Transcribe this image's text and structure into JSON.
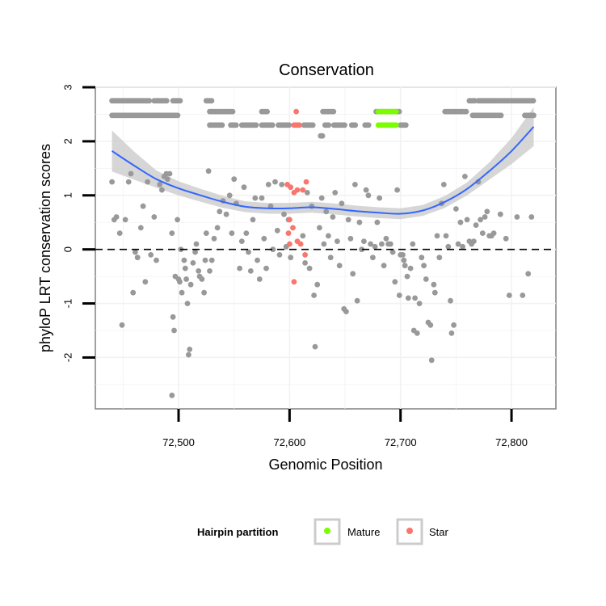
{
  "chart_data": {
    "type": "scatter",
    "title": "Conservation",
    "xlabel": "Genomic Position",
    "ylabel": "phyloP LRT conservation scores",
    "xlim": [
      72425,
      72840
    ],
    "ylim": [
      -2.95,
      3.0
    ],
    "x_ticks": [
      72500,
      72600,
      72700,
      72800
    ],
    "x_tick_labels": [
      "72,500",
      "72,600",
      "72,700",
      "72,800"
    ],
    "y_ticks": [
      -2,
      -1,
      0,
      1,
      2,
      3
    ],
    "y_tick_labels": [
      "-2",
      "-1",
      "0",
      "1",
      "2",
      "3"
    ],
    "grid": true,
    "reference_line": {
      "y": 0,
      "style": "dashed"
    },
    "legend": {
      "title": "Hairpin partition",
      "position": "bottom",
      "entries": [
        {
          "label": "Mature",
          "color": "#7CFC00"
        },
        {
          "label": "Star",
          "color": "#F8766D"
        }
      ]
    },
    "colors": {
      "other": "#999999",
      "Mature": "#7CFC00",
      "Star": "#F8766D",
      "smooth": "#3366FF",
      "band": "#cccccc"
    },
    "bands": [
      {
        "y": 2.75,
        "ranges": [
          [
            72440,
            72475
          ],
          [
            72478,
            72490
          ],
          [
            72495,
            72502
          ],
          [
            72525,
            72530
          ],
          [
            72762,
            72768
          ],
          [
            72770,
            72820
          ]
        ]
      },
      {
        "y": 2.55,
        "ranges": [
          [
            72528,
            72550
          ],
          [
            72575,
            72580
          ],
          [
            72630,
            72640
          ],
          [
            72678,
            72700
          ],
          [
            72740,
            72760
          ]
        ]
      },
      {
        "y": 2.48,
        "ranges": [
          [
            72440,
            72500
          ],
          [
            72765,
            72792
          ],
          [
            72812,
            72820
          ]
        ]
      },
      {
        "y": 2.3,
        "ranges": [
          [
            72528,
            72540
          ],
          [
            72547,
            72552
          ],
          [
            72557,
            72570
          ],
          [
            72575,
            72585
          ],
          [
            72590,
            72600
          ],
          [
            72613,
            72622
          ],
          [
            72632,
            72636
          ],
          [
            72640,
            72650
          ],
          [
            72656,
            72660
          ],
          [
            72668,
            72672
          ],
          [
            72700,
            72705
          ]
        ]
      },
      {
        "y": 2.1,
        "ranges": [
          [
            72628,
            72630
          ]
        ]
      }
    ],
    "bands_mature": [
      {
        "y": 2.55,
        "ranges": [
          [
            72680,
            72697
          ]
        ]
      },
      {
        "y": 2.3,
        "ranges": [
          [
            72680,
            72697
          ]
        ]
      }
    ],
    "bands_star": [
      {
        "y": 2.55,
        "ranges": [
          [
            72606,
            72606
          ]
        ]
      },
      {
        "y": 2.3,
        "ranges": [
          [
            72604,
            72610
          ]
        ]
      }
    ],
    "points": [
      [
        72440,
        1.25
      ],
      [
        72442,
        0.55
      ],
      [
        72444,
        0.6
      ],
      [
        72447,
        0.3
      ],
      [
        72449,
        -1.4
      ],
      [
        72452,
        0.55
      ],
      [
        72455,
        1.25
      ],
      [
        72457,
        1.4
      ],
      [
        72459,
        -0.8
      ],
      [
        72461,
        -0.05
      ],
      [
        72463,
        -0.15
      ],
      [
        72466,
        0.4
      ],
      [
        72468,
        0.8
      ],
      [
        72470,
        -0.6
      ],
      [
        72472,
        1.25
      ],
      [
        72475,
        -0.1
      ],
      [
        72478,
        0.6
      ],
      [
        72480,
        -0.2
      ],
      [
        72483,
        1.2
      ],
      [
        72485,
        1.1
      ],
      [
        72487,
        1.35
      ],
      [
        72489,
        1.4
      ],
      [
        72490,
        1.3
      ],
      [
        72492,
        1.4
      ],
      [
        72494,
        0.3
      ],
      [
        72495,
        -1.25
      ],
      [
        72496,
        -1.5
      ],
      [
        72494,
        -2.7
      ],
      [
        72497,
        -0.5
      ],
      [
        72499,
        0.55
      ],
      [
        72500,
        -0.55
      ],
      [
        72501,
        -0.6
      ],
      [
        72502,
        0.0
      ],
      [
        72503,
        -0.8
      ],
      [
        72505,
        -0.2
      ],
      [
        72506,
        -0.35
      ],
      [
        72507,
        -0.55
      ],
      [
        72508,
        -1.0
      ],
      [
        72509,
        -1.95
      ],
      [
        72510,
        -1.85
      ],
      [
        72511,
        -0.65
      ],
      [
        72513,
        -0.25
      ],
      [
        72515,
        -0.05
      ],
      [
        72516,
        0.1
      ],
      [
        72518,
        -0.4
      ],
      [
        72519,
        -0.5
      ],
      [
        72521,
        -0.55
      ],
      [
        72523,
        -0.8
      ],
      [
        72524,
        -0.2
      ],
      [
        72525,
        0.3
      ],
      [
        72527,
        1.45
      ],
      [
        72528,
        -0.4
      ],
      [
        72530,
        -0.2
      ],
      [
        72532,
        0.2
      ],
      [
        72535,
        0.4
      ],
      [
        72537,
        0.7
      ],
      [
        72540,
        0.9
      ],
      [
        72543,
        0.65
      ],
      [
        72546,
        1.0
      ],
      [
        72548,
        0.3
      ],
      [
        72550,
        1.3
      ],
      [
        72552,
        0.85
      ],
      [
        72555,
        -0.35
      ],
      [
        72557,
        0.15
      ],
      [
        72559,
        1.15
      ],
      [
        72561,
        0.3
      ],
      [
        72563,
        -0.05
      ],
      [
        72565,
        -0.4
      ],
      [
        72567,
        0.55
      ],
      [
        72569,
        0.95
      ],
      [
        72571,
        -0.2
      ],
      [
        72573,
        -0.55
      ],
      [
        72575,
        0.95
      ],
      [
        72577,
        0.2
      ],
      [
        72579,
        -0.35
      ],
      [
        72581,
        1.2
      ],
      [
        72583,
        0.8
      ],
      [
        72585,
        0.0
      ],
      [
        72587,
        1.25
      ],
      [
        72589,
        0.35
      ],
      [
        72591,
        -0.1
      ],
      [
        72593,
        1.2
      ],
      [
        72595,
        0.65
      ],
      [
        72597,
        0.05
      ],
      [
        72599,
        0.55
      ],
      [
        72601,
        -0.15
      ],
      [
        72612,
        0.25
      ],
      [
        72614,
        -0.25
      ],
      [
        72616,
        1.05
      ],
      [
        72618,
        -0.35
      ],
      [
        72620,
        0.8
      ],
      [
        72622,
        -0.85
      ],
      [
        72623,
        -1.8
      ],
      [
        72625,
        -0.65
      ],
      [
        72627,
        0.4
      ],
      [
        72629,
        0.95
      ],
      [
        72631,
        0.1
      ],
      [
        72633,
        0.7
      ],
      [
        72635,
        0.25
      ],
      [
        72637,
        -0.15
      ],
      [
        72639,
        0.6
      ],
      [
        72641,
        1.05
      ],
      [
        72643,
        0.15
      ],
      [
        72645,
        -0.3
      ],
      [
        72647,
        0.85
      ],
      [
        72649,
        -1.1
      ],
      [
        72651,
        -1.15
      ],
      [
        72653,
        0.55
      ],
      [
        72655,
        0.2
      ],
      [
        72657,
        -0.45
      ],
      [
        72659,
        1.2
      ],
      [
        72661,
        -0.95
      ],
      [
        72663,
        0.5
      ],
      [
        72665,
        0.0
      ],
      [
        72667,
        0.15
      ],
      [
        72669,
        1.1
      ],
      [
        72671,
        1.0
      ],
      [
        72673,
        0.1
      ],
      [
        72675,
        -0.15
      ],
      [
        72677,
        0.05
      ],
      [
        72679,
        0.5
      ],
      [
        72681,
        0.95
      ],
      [
        72683,
        0.1
      ],
      [
        72685,
        -0.3
      ],
      [
        72687,
        0.2
      ],
      [
        72689,
        0.1
      ],
      [
        72691,
        0.1
      ],
      [
        72693,
        -0.05
      ],
      [
        72695,
        -0.6
      ],
      [
        72697,
        1.1
      ],
      [
        72699,
        -0.85
      ],
      [
        72700,
        -0.1
      ],
      [
        72702,
        -0.1
      ],
      [
        72703,
        -0.2
      ],
      [
        72704,
        -0.3
      ],
      [
        72706,
        -0.5
      ],
      [
        72707,
        -0.9
      ],
      [
        72709,
        -0.35
      ],
      [
        72711,
        0.1
      ],
      [
        72712,
        -1.5
      ],
      [
        72713,
        -0.9
      ],
      [
        72715,
        -1.55
      ],
      [
        72717,
        -1.0
      ],
      [
        72719,
        -0.15
      ],
      [
        72721,
        -0.3
      ],
      [
        72723,
        -0.55
      ],
      [
        72725,
        -1.35
      ],
      [
        72727,
        -1.4
      ],
      [
        72728,
        -2.05
      ],
      [
        72730,
        -0.65
      ],
      [
        72731,
        -0.8
      ],
      [
        72733,
        0.25
      ],
      [
        72735,
        -0.15
      ],
      [
        72737,
        0.85
      ],
      [
        72739,
        1.2
      ],
      [
        72741,
        0.25
      ],
      [
        72743,
        0.05
      ],
      [
        72745,
        -0.95
      ],
      [
        72746,
        -1.55
      ],
      [
        72748,
        -1.4
      ],
      [
        72750,
        0.75
      ],
      [
        72752,
        0.1
      ],
      [
        72754,
        0.5
      ],
      [
        72756,
        0.05
      ],
      [
        72758,
        1.35
      ],
      [
        72760,
        0.55
      ],
      [
        72762,
        0.15
      ],
      [
        72764,
        0.1
      ],
      [
        72766,
        0.15
      ],
      [
        72768,
        0.45
      ],
      [
        72770,
        1.25
      ],
      [
        72772,
        0.55
      ],
      [
        72774,
        0.3
      ],
      [
        72776,
        0.6
      ],
      [
        72778,
        0.7
      ],
      [
        72780,
        0.25
      ],
      [
        72782,
        0.25
      ],
      [
        72784,
        0.3
      ],
      [
        72790,
        0.65
      ],
      [
        72795,
        0.2
      ],
      [
        72798,
        -0.85
      ],
      [
        72805,
        0.6
      ],
      [
        72810,
        -0.85
      ],
      [
        72815,
        -0.45
      ],
      [
        72818,
        0.6
      ]
    ],
    "star_points": [
      [
        72598,
        1.2
      ],
      [
        72601,
        1.15
      ],
      [
        72604,
        1.05
      ],
      [
        72607,
        1.1
      ],
      [
        72612,
        1.1
      ],
      [
        72615,
        1.25
      ],
      [
        72600,
        0.55
      ],
      [
        72603,
        0.4
      ],
      [
        72599,
        0.3
      ],
      [
        72600,
        0.1
      ],
      [
        72607,
        0.15
      ],
      [
        72610,
        0.1
      ],
      [
        72614,
        -0.1
      ],
      [
        72604,
        -0.6
      ]
    ],
    "smooth_x": [
      72440,
      72460,
      72480,
      72500,
      72520,
      72540,
      72560,
      72580,
      72600,
      72620,
      72640,
      72660,
      72680,
      72700,
      72720,
      72740,
      72760,
      72780,
      72800,
      72820
    ],
    "smooth_y": [
      1.82,
      1.55,
      1.3,
      1.13,
      1.0,
      0.88,
      0.79,
      0.76,
      0.76,
      0.78,
      0.75,
      0.71,
      0.68,
      0.66,
      0.72,
      0.88,
      1.12,
      1.45,
      1.82,
      2.27
    ],
    "smooth_se": [
      0.38,
      0.26,
      0.16,
      0.13,
      0.12,
      0.11,
      0.1,
      0.1,
      0.1,
      0.1,
      0.1,
      0.1,
      0.1,
      0.1,
      0.1,
      0.11,
      0.12,
      0.16,
      0.24,
      0.36
    ]
  }
}
